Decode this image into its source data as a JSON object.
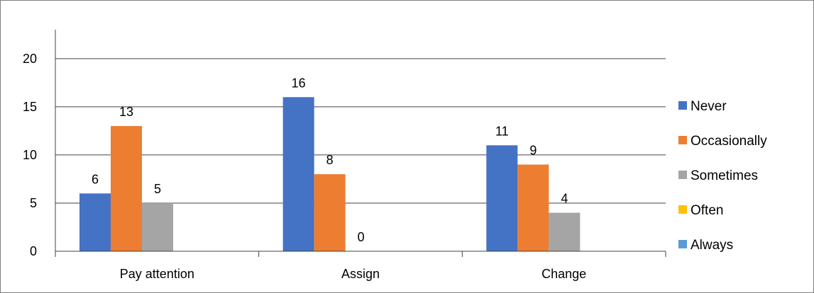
{
  "chart_data": {
    "type": "bar",
    "title": "",
    "xlabel": "",
    "ylabel": "",
    "categories": [
      "Pay attention",
      "Assign",
      "Change"
    ],
    "series": [
      {
        "name": "Never",
        "color": "#4472C4",
        "values": [
          6,
          16,
          11
        ]
      },
      {
        "name": "Occasionally",
        "color": "#ED7D31",
        "values": [
          13,
          8,
          9
        ]
      },
      {
        "name": "Sometimes",
        "color": "#A5A5A5",
        "values": [
          5,
          0,
          4
        ]
      },
      {
        "name": "Often",
        "color": "#FFC000",
        "values": [
          null,
          null,
          null
        ]
      },
      {
        "name": "Always",
        "color": "#5B9BD5",
        "values": [
          null,
          null,
          null
        ]
      }
    ],
    "ylim": [
      0,
      23
    ],
    "yticks": [
      0,
      5,
      10,
      15,
      20
    ],
    "grid": true,
    "legend_position": "right"
  }
}
